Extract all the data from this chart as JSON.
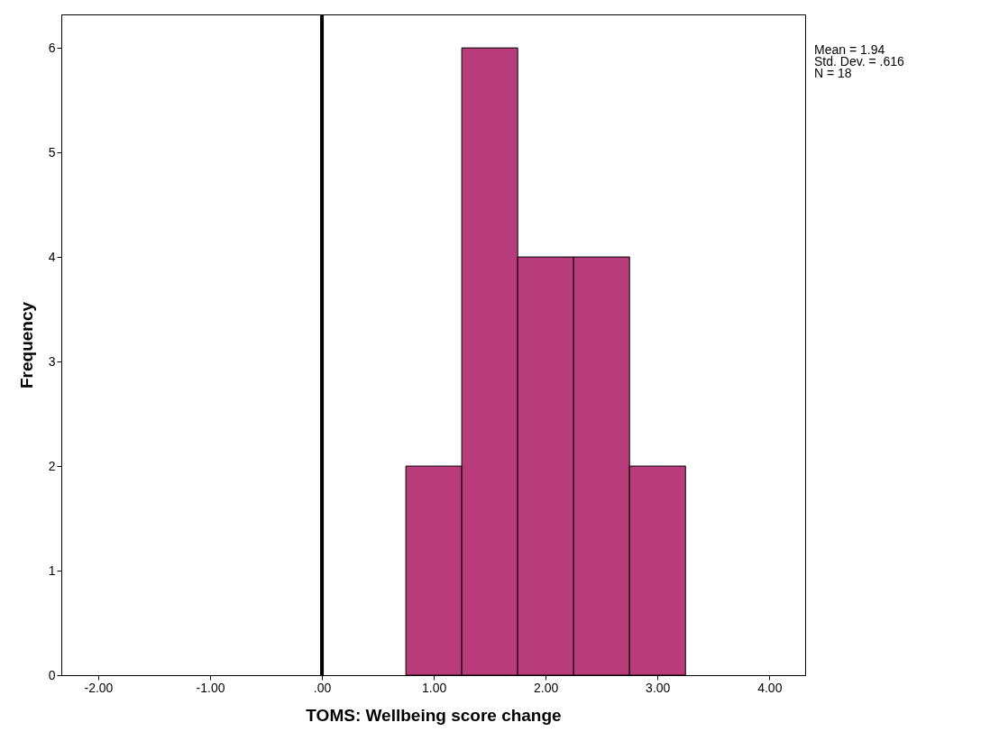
{
  "chart_data": {
    "type": "histogram",
    "xlabel": "TOMS: Wellbeing score change",
    "ylabel": "Frequency",
    "bins": [
      0.75,
      1.25,
      1.75,
      2.25,
      2.75,
      3.25
    ],
    "values": [
      2,
      6,
      4,
      4,
      2
    ],
    "color": "#b83c7a",
    "xlim": [
      -2.33,
      4.32
    ],
    "ylim": [
      0,
      6.32
    ],
    "xticks": [
      {
        "value": -2,
        "label": "-2.00"
      },
      {
        "value": -1,
        "label": "-1.00"
      },
      {
        "value": 0,
        "label": ".00"
      },
      {
        "value": 1,
        "label": "1.00"
      },
      {
        "value": 2,
        "label": "2.00"
      },
      {
        "value": 3,
        "label": "3.00"
      },
      {
        "value": 4,
        "label": "4.00"
      }
    ],
    "yticks": [
      0,
      1,
      2,
      3,
      4,
      5,
      6
    ],
    "ref_lines": [
      {
        "axis": "x",
        "value": 0,
        "color": "#000000"
      }
    ],
    "annotations": [
      "Mean = 1.94",
      "Std. Dev. = .616",
      "N = 18"
    ],
    "grid": false
  }
}
